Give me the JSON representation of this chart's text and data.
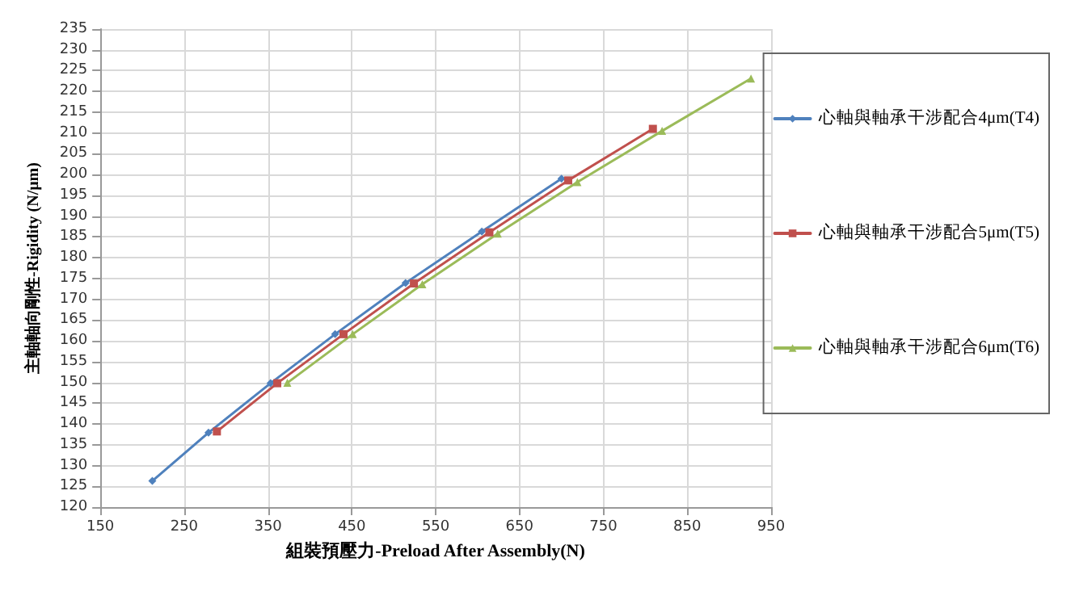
{
  "chart_data": {
    "type": "line",
    "xlabel": "組裝預壓力-Preload After Assembly(N)",
    "ylabel": "主軸軸向剛性-Rigidity (N/μm)",
    "xlim": [
      150,
      950
    ],
    "xticks": [
      150,
      250,
      350,
      450,
      550,
      650,
      750,
      850,
      950
    ],
    "ylim": [
      120,
      235
    ],
    "yticks": [
      120,
      125,
      130,
      135,
      140,
      145,
      150,
      155,
      160,
      165,
      170,
      175,
      180,
      185,
      190,
      195,
      200,
      205,
      210,
      215,
      220,
      225,
      230,
      235
    ],
    "grid": true,
    "legend": "right",
    "line_style": "solid",
    "series": [
      {
        "name": "心軸與軸承干涉配合4μm(T4)",
        "color": "#4f81bd",
        "marker": "diamond",
        "x": [
          212,
          279,
          353,
          430,
          514,
          605,
          700
        ],
        "values": [
          126.3,
          137.9,
          149.8,
          161.6,
          173.9,
          186.3,
          199
        ]
      },
      {
        "name": "心軸與軸承干涉配合5μm(T5)",
        "color": "#c0504d",
        "marker": "square",
        "x": [
          289,
          361,
          440,
          524,
          614,
          708,
          809
        ],
        "values": [
          138.2,
          149.8,
          161.6,
          173.8,
          186.1,
          198.6,
          211
        ]
      },
      {
        "name": "心軸與軸承干涉配合6μm(T6)",
        "color": "#9bbb59",
        "marker": "triangle",
        "x": [
          373,
          451,
          534,
          624,
          719,
          820,
          926
        ],
        "values": [
          149.9,
          161.6,
          173.6,
          185.8,
          198.2,
          210.5,
          223.1
        ]
      }
    ]
  }
}
